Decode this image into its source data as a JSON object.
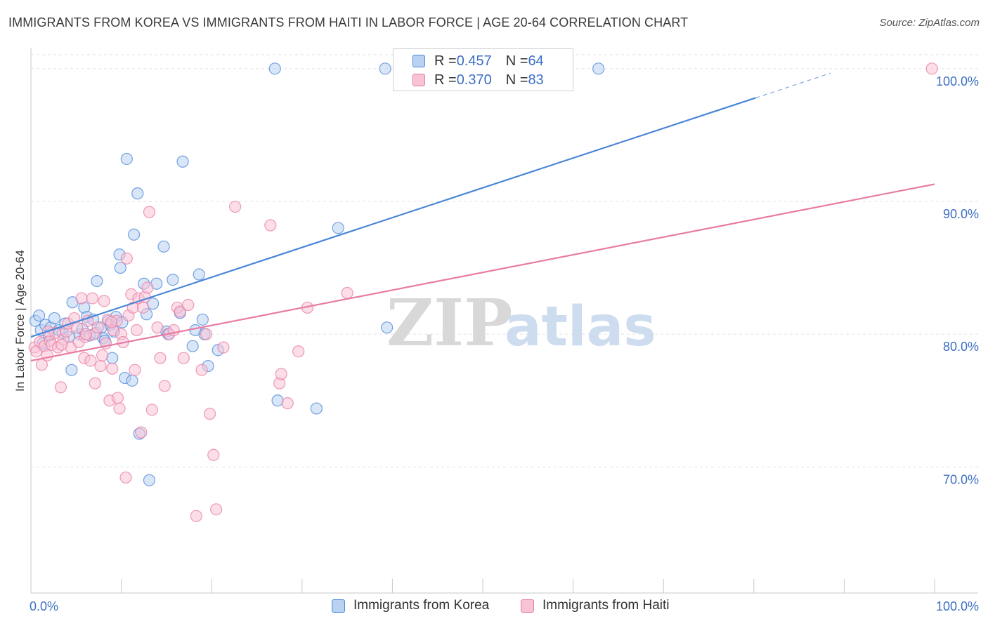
{
  "chart_data": {
    "type": "scatter",
    "title": "IMMIGRANTS FROM KOREA VS IMMIGRANTS FROM HAITI IN LABOR FORCE | AGE 20-64 CORRELATION CHART",
    "source": "Source: ZipAtlas.com",
    "watermark": {
      "zip": "ZIP",
      "atlas": "atlas"
    },
    "xlabel": "",
    "ylabel": "In Labor Force | Age 20-64",
    "xlim": [
      0,
      100
    ],
    "ylim": [
      60.5,
      102
    ],
    "x_tick_labels": {
      "left": "0.0%",
      "right": "100.0%"
    },
    "y_ticks": [
      {
        "value": 100,
        "label": "100.0%"
      },
      {
        "value": 90,
        "label": "90.0%"
      },
      {
        "value": 80,
        "label": "80.0%"
      },
      {
        "value": 70,
        "label": "70.0%"
      }
    ],
    "grid": true,
    "legend_position": "top-center",
    "series": [
      {
        "name": "Immigrants from Korea",
        "legend_label": "Immigrants from Korea",
        "r_label": "R = ",
        "r_value": "0.457",
        "n_label": "N = ",
        "n_value": "64",
        "color": "#4a86d8",
        "fill": "#b9d2f2",
        "trend": {
          "x0": 0,
          "y0": 79.8,
          "x1": 80.2,
          "y1": 97.8,
          "dash_to_x": 88.5
        },
        "points": [
          [
            0.5,
            81.0
          ],
          [
            0.9,
            81.4
          ],
          [
            1.1,
            80.3
          ],
          [
            1.6,
            80.7
          ],
          [
            2.0,
            79.9
          ],
          [
            2.2,
            80.5
          ],
          [
            2.6,
            81.2
          ],
          [
            3.1,
            80.3
          ],
          [
            3.5,
            80.1
          ],
          [
            3.8,
            80.8
          ],
          [
            4.2,
            79.8
          ],
          [
            4.6,
            82.4
          ],
          [
            4.5,
            77.3
          ],
          [
            5.4,
            80.0
          ],
          [
            5.7,
            80.4
          ],
          [
            5.9,
            82.0
          ],
          [
            6.2,
            81.3
          ],
          [
            6.5,
            79.9
          ],
          [
            6.9,
            81.1
          ],
          [
            7.2,
            80.1
          ],
          [
            7.3,
            84.0
          ],
          [
            7.8,
            80.5
          ],
          [
            8.0,
            79.7
          ],
          [
            8.2,
            79.5
          ],
          [
            8.6,
            81.0
          ],
          [
            8.8,
            80.7
          ],
          [
            9.0,
            78.2
          ],
          [
            9.2,
            80.2
          ],
          [
            9.4,
            81.3
          ],
          [
            9.8,
            86.0
          ],
          [
            9.9,
            85.0
          ],
          [
            10.1,
            80.9
          ],
          [
            10.4,
            76.7
          ],
          [
            10.6,
            93.2
          ],
          [
            11.2,
            76.5
          ],
          [
            11.4,
            87.5
          ],
          [
            11.8,
            90.6
          ],
          [
            12.0,
            72.5
          ],
          [
            12.5,
            83.8
          ],
          [
            12.8,
            81.5
          ],
          [
            13.1,
            69.0
          ],
          [
            13.5,
            82.3
          ],
          [
            13.9,
            83.8
          ],
          [
            14.7,
            86.6
          ],
          [
            15.0,
            80.2
          ],
          [
            15.2,
            80.0
          ],
          [
            15.7,
            84.1
          ],
          [
            16.5,
            81.6
          ],
          [
            16.8,
            93.0
          ],
          [
            17.9,
            79.1
          ],
          [
            18.2,
            80.3
          ],
          [
            18.6,
            84.5
          ],
          [
            19.0,
            81.1
          ],
          [
            19.2,
            80.0
          ],
          [
            19.6,
            77.6
          ],
          [
            20.7,
            78.8
          ],
          [
            27.0,
            100.0
          ],
          [
            27.3,
            75.0
          ],
          [
            31.6,
            74.4
          ],
          [
            34.0,
            88.0
          ],
          [
            39.2,
            100.0
          ],
          [
            39.4,
            80.5
          ],
          [
            62.8,
            100.0
          ],
          [
            1.3,
            79.3
          ]
        ]
      },
      {
        "name": "Immigrants from Haiti",
        "legend_label": "Immigrants from Haiti",
        "r_label": "R = ",
        "r_value": "0.370",
        "n_label": "N = ",
        "n_value": "83",
        "color": "#e87ba3",
        "fill": "#f8c3d6",
        "trend": {
          "x0": 0,
          "y0": 78.0,
          "x1": 100,
          "y1": 91.3
        },
        "points": [
          [
            0.4,
            79.0
          ],
          [
            0.6,
            78.7
          ],
          [
            1.0,
            79.4
          ],
          [
            1.2,
            77.7
          ],
          [
            1.5,
            79.1
          ],
          [
            1.8,
            78.4
          ],
          [
            2.1,
            79.5
          ],
          [
            2.3,
            79.2
          ],
          [
            2.7,
            80.1
          ],
          [
            3.0,
            79.0
          ],
          [
            3.3,
            76.0
          ],
          [
            3.6,
            79.6
          ],
          [
            3.9,
            80.2
          ],
          [
            4.1,
            80.8
          ],
          [
            4.4,
            79.0
          ],
          [
            4.8,
            81.2
          ],
          [
            5.1,
            80.5
          ],
          [
            5.3,
            79.4
          ],
          [
            5.6,
            82.7
          ],
          [
            5.9,
            78.2
          ],
          [
            6.0,
            79.8
          ],
          [
            6.3,
            81.0
          ],
          [
            6.6,
            78.0
          ],
          [
            6.8,
            82.7
          ],
          [
            7.0,
            80.0
          ],
          [
            7.1,
            76.3
          ],
          [
            7.4,
            80.5
          ],
          [
            7.7,
            77.6
          ],
          [
            7.9,
            78.4
          ],
          [
            8.1,
            82.5
          ],
          [
            8.3,
            79.3
          ],
          [
            8.5,
            81.1
          ],
          [
            8.7,
            75.0
          ],
          [
            9.0,
            77.4
          ],
          [
            9.1,
            80.3
          ],
          [
            9.5,
            81.0
          ],
          [
            9.6,
            75.2
          ],
          [
            9.8,
            74.4
          ],
          [
            10.0,
            80.0
          ],
          [
            10.2,
            79.4
          ],
          [
            10.5,
            69.2
          ],
          [
            10.6,
            85.7
          ],
          [
            10.8,
            81.4
          ],
          [
            11.1,
            83.0
          ],
          [
            11.3,
            82.0
          ],
          [
            11.5,
            77.3
          ],
          [
            11.9,
            82.7
          ],
          [
            12.2,
            72.6
          ],
          [
            12.4,
            82.0
          ],
          [
            12.6,
            82.8
          ],
          [
            12.9,
            83.5
          ],
          [
            13.1,
            89.2
          ],
          [
            13.4,
            74.3
          ],
          [
            14.0,
            80.5
          ],
          [
            14.3,
            78.2
          ],
          [
            14.8,
            76.1
          ],
          [
            15.3,
            80.0
          ],
          [
            15.8,
            80.3
          ],
          [
            16.2,
            82.0
          ],
          [
            16.5,
            81.7
          ],
          [
            17.4,
            82.2
          ],
          [
            18.3,
            66.3
          ],
          [
            18.9,
            77.3
          ],
          [
            19.4,
            80.0
          ],
          [
            19.8,
            74.0
          ],
          [
            20.2,
            70.9
          ],
          [
            20.5,
            66.8
          ],
          [
            21.3,
            79.0
          ],
          [
            22.6,
            89.6
          ],
          [
            26.5,
            88.2
          ],
          [
            27.5,
            76.3
          ],
          [
            27.7,
            77.0
          ],
          [
            28.4,
            74.8
          ],
          [
            29.6,
            78.7
          ],
          [
            30.6,
            82.0
          ],
          [
            35.0,
            83.1
          ],
          [
            99.7,
            100.0
          ],
          [
            1.9,
            80.2
          ],
          [
            3.4,
            79.2
          ],
          [
            6.1,
            80.0
          ],
          [
            8.9,
            80.9
          ],
          [
            11.7,
            80.3
          ],
          [
            16.9,
            78.2
          ]
        ]
      }
    ]
  }
}
